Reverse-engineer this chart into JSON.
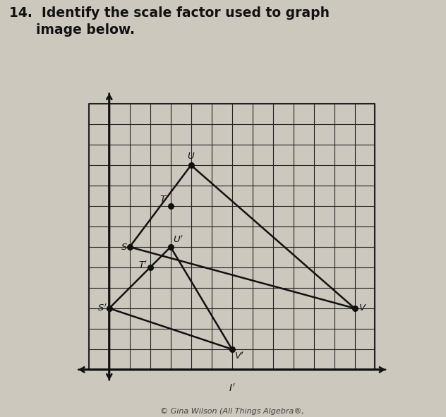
{
  "title_line1": "14.  Identify the scale factor used to graph",
  "title_line2": "      image below.",
  "title_fontsize": 13.5,
  "grid_cols": 14,
  "grid_rows": 13,
  "S": [
    2,
    6
  ],
  "T": [
    4,
    8
  ],
  "U": [
    5,
    10
  ],
  "V": [
    13,
    3
  ],
  "Sp": [
    1,
    3
  ],
  "Tp": [
    3,
    5
  ],
  "Up": [
    4,
    6
  ],
  "Vp": [
    7,
    1
  ],
  "watermark": "© Gina Wilson (All Things Algebra®,",
  "bg_color": "#ccc8be",
  "grid_bg": "#e8e4dc",
  "grid_color": "#222222",
  "line_color": "#111111",
  "point_color": "#111111",
  "text_color": "#111111",
  "title_color": "#111111"
}
